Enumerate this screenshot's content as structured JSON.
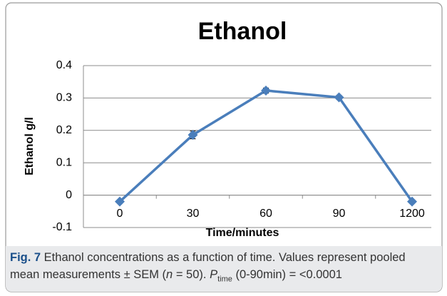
{
  "chart_data": {
    "type": "line",
    "title": "Ethanol",
    "x_label": "Time/minutes",
    "y_label": "Ethanol g/l",
    "categories": [
      "0",
      "30",
      "60",
      "90",
      "1200"
    ],
    "series": [
      {
        "name": "Ethanol",
        "color": "#4a7ebb",
        "values": [
          -0.02,
          0.186,
          0.323,
          0.302,
          -0.02
        ],
        "errors": [
          0.004,
          0.012,
          0.008,
          0.006,
          0.003
        ]
      }
    ],
    "ylim": [
      -0.1,
      0.4
    ],
    "yticks": [
      -0.1,
      0,
      0.1,
      0.2,
      0.3,
      0.4
    ],
    "grid": true
  },
  "caption": [
    "Fig. 7",
    " Ethanol concentrations as a function of time. Values represent pooled mean measurements ± SEM (",
    "n",
    " = 50). ",
    "P",
    "time",
    " (0-90min) = <0.0001"
  ]
}
